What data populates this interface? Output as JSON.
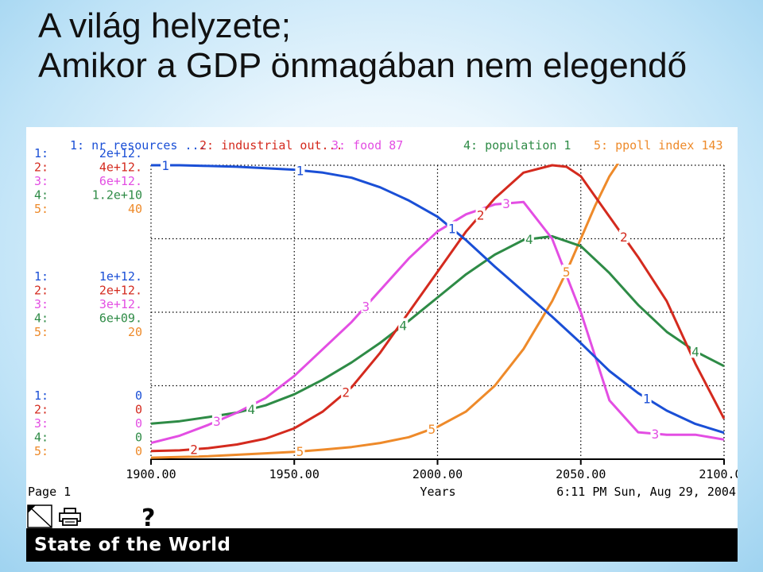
{
  "slide": {
    "title_line1": "A világ helyzete;",
    "title_line2": "Amikor a GDP önmagában nem elegendő"
  },
  "ui": {
    "page_label": "Page 1",
    "timestamp": "6:11 PM   Sun, Aug 29, 2004",
    "footer_title": "State of the World",
    "help_glyph": "?"
  },
  "colors": {
    "s1": "#1a4fd6",
    "s2": "#d42a1e",
    "s3": "#e34ee3",
    "s4": "#2e8b46",
    "s5": "#ee8a2a"
  },
  "chart_data": {
    "type": "line",
    "xlabel": "Years",
    "x_ticks": [
      "1900.00",
      "1950.00",
      "2000.00",
      "2050.00",
      "2100.00"
    ],
    "xlim": [
      1900,
      2100
    ],
    "legend": [
      {
        "num": "1",
        "label": "1: nr resources ..."
      },
      {
        "num": "2",
        "label": "2: industrial out..."
      },
      {
        "num": "3",
        "label": "3: food 87"
      },
      {
        "num": "4",
        "label": "4: population 1"
      },
      {
        "num": "5",
        "label": "5: ppoll index 143"
      }
    ],
    "axis_labels": {
      "prefix": [
        "1:",
        "2:",
        "3:",
        "4:",
        "5:"
      ],
      "top": [
        "2e+12.",
        "4e+12.",
        "6e+12.",
        "1.2e+10",
        "40"
      ],
      "mid": [
        "1e+12.",
        "2e+12.",
        "3e+12.",
        "6e+09.",
        "20"
      ],
      "bottom": [
        "0",
        "0",
        "0",
        "0",
        "0"
      ]
    },
    "series": [
      {
        "name": "nr resources",
        "max": 2000000000000.0,
        "x": [
          1900,
          1910,
          1920,
          1930,
          1940,
          1950,
          1960,
          1970,
          1980,
          1990,
          2000,
          2010,
          2020,
          2030,
          2040,
          2050,
          2060,
          2070,
          2080,
          2090,
          2100
        ],
        "values": [
          2000000000000.0,
          2000000000000.0,
          1995000000000.0,
          1990000000000.0,
          1980000000000.0,
          1970000000000.0,
          1950000000000.0,
          1915000000000.0,
          1850000000000.0,
          1760000000000.0,
          1650000000000.0,
          1490000000000.0,
          1310000000000.0,
          1140000000000.0,
          970000000000.0,
          790000000000.0,
          600000000000.0,
          450000000000.0,
          330000000000.0,
          240000000000.0,
          180000000000.0
        ]
      },
      {
        "name": "industrial out",
        "max": 4000000000000.0,
        "x": [
          1900,
          1910,
          1920,
          1930,
          1940,
          1950,
          1960,
          1970,
          1980,
          1990,
          2000,
          2010,
          2020,
          2030,
          2040,
          2045,
          2050,
          2060,
          2070,
          2080,
          2090,
          2100
        ],
        "values": [
          110000000000.0,
          120000000000.0,
          150000000000.0,
          200000000000.0,
          280000000000.0,
          420000000000.0,
          650000000000.0,
          980000000000.0,
          1450000000000.0,
          2000000000000.0,
          2550000000000.0,
          3100000000000.0,
          3550000000000.0,
          3900000000000.0,
          4000000000000.0,
          3980000000000.0,
          3850000000000.0,
          3300000000000.0,
          2750000000000.0,
          2150000000000.0,
          1300000000000.0,
          550000000000.0
        ]
      },
      {
        "name": "food",
        "max": 6000000000000.0,
        "x": [
          1900,
          1910,
          1920,
          1930,
          1940,
          1950,
          1960,
          1970,
          1980,
          1990,
          2000,
          2010,
          2020,
          2030,
          2040,
          2050,
          2060,
          2070,
          2080,
          2090,
          2100
        ],
        "values": [
          330000000000.0,
          480000000000.0,
          700000000000.0,
          950000000000.0,
          1250000000000.0,
          1700000000000.0,
          2250000000000.0,
          2800000000000.0,
          3450000000000.0,
          4100000000000.0,
          4650000000000.0,
          5000000000000.0,
          5200000000000.0,
          5250000000000.0,
          4500000000000.0,
          3000000000000.0,
          1200000000000.0,
          550000000000.0,
          500000000000.0,
          500000000000.0,
          400000000000.0
        ]
      },
      {
        "name": "population",
        "max": 12000000000.0,
        "x": [
          1900,
          1910,
          1920,
          1930,
          1940,
          1950,
          1960,
          1970,
          1980,
          1990,
          2000,
          2010,
          2020,
          2030,
          2040,
          2050,
          2060,
          2070,
          2080,
          2090,
          2100
        ],
        "values": [
          1450000000.0,
          1550000000.0,
          1720000000.0,
          1900000000.0,
          2200000000.0,
          2650000000.0,
          3250000000.0,
          3950000000.0,
          4750000000.0,
          5650000000.0,
          6600000000.0,
          7550000000.0,
          8350000000.0,
          8950000000.0,
          9100000000.0,
          8700000000.0,
          7600000000.0,
          6300000000.0,
          5200000000.0,
          4400000000.0,
          3800000000.0
        ]
      },
      {
        "name": "ppoll index",
        "max": 40,
        "x": [
          1900,
          1920,
          1940,
          1950,
          1960,
          1970,
          1980,
          1990,
          2000,
          2010,
          2020,
          2030,
          2040,
          2045,
          2050,
          2055,
          2060,
          2066
        ],
        "values": [
          0.2,
          0.4,
          0.8,
          1.0,
          1.3,
          1.65,
          2.2,
          3.0,
          4.4,
          6.5,
          10.0,
          15.0,
          21.5,
          25.5,
          30.0,
          34.5,
          38.5,
          42
        ]
      }
    ],
    "curve_labels": [
      {
        "series": 0,
        "x": [
          1905,
          1952,
          2005,
          2073
        ]
      },
      {
        "series": 1,
        "x": [
          1915,
          1968,
          2015,
          2065
        ]
      },
      {
        "series": 2,
        "x": [
          1923,
          1975,
          2024,
          2076
        ]
      },
      {
        "series": 3,
        "x": [
          1935,
          1988,
          2032,
          2090
        ]
      },
      {
        "series": 4,
        "x": [
          1952,
          1998,
          2045
        ]
      }
    ],
    "grid": true
  }
}
